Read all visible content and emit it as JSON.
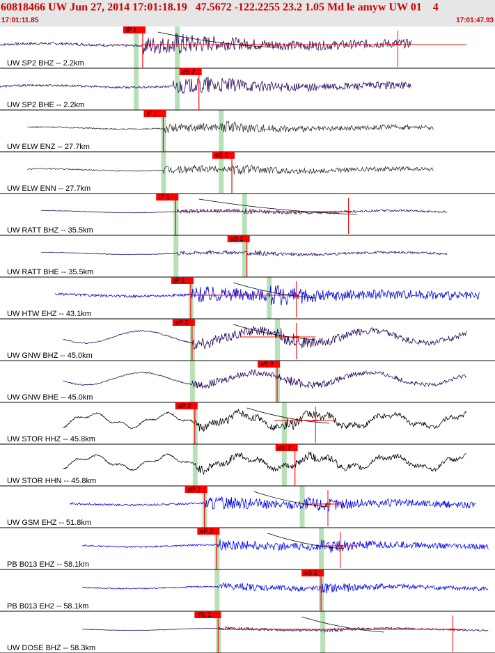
{
  "header": {
    "title": "60818466 UW Jun 27, 2014 17:01:18.19   47.5672 -122.2255 23.2 1.05 Md le amyw UW 01    4",
    "time_start": "17:01:11.85",
    "time_end": "17:01:47.93"
  },
  "colors": {
    "pick": "#ff0000",
    "window": "#b8e0b8",
    "coda": "#000000"
  },
  "chart_data": {
    "type": "seismogram",
    "x_range_seconds": [
      0,
      36.08
    ],
    "traces": [
      {
        "label": "UW SP2 BHZ -- 2.2km",
        "color": "#2a0a5e",
        "start": 0,
        "end": 30.0,
        "amp": 0.3,
        "freq": 30,
        "style": "hf",
        "onset": 10.4,
        "sonset": 12.6,
        "pick": {
          "label": "iP 1",
          "t": 10.4
        },
        "green": [
          9.9,
          12.9
        ],
        "mark": 29.0,
        "coda": [
          11.5,
          20
        ],
        "hline": [
          10.4,
          34.0
        ]
      },
      {
        "label": "UW SP2 BHE -- 2.2km",
        "color": "#2a0a5e",
        "start": 0,
        "end": 30.0,
        "amp": 0.25,
        "freq": 30,
        "style": "hf",
        "onset": 12.6,
        "sonset": 14.5,
        "pick": {
          "label": "eS 2",
          "t": 14.5
        },
        "green": [
          9.9,
          12.9
        ]
      },
      {
        "label": "UW ELW ENZ -- 27.7km",
        "color": "#333333",
        "start": 2.0,
        "end": 31.6,
        "amp": 0.16,
        "freq": 35,
        "style": "hf",
        "onset": 11.9,
        "sonset": 16.1,
        "pick": {
          "label": "iP 1",
          "t": 11.9
        },
        "green": [
          11.9,
          16.1
        ]
      },
      {
        "label": "UW ELW ENN -- 27.7km",
        "color": "#333333",
        "start": 2.0,
        "end": 31.6,
        "amp": 0.14,
        "freq": 35,
        "style": "hf",
        "onset": 11.9,
        "sonset": 16.9,
        "pick": {
          "label": "eS 2",
          "t": 16.9
        },
        "green": [
          11.9,
          16.1
        ]
      },
      {
        "label": "UW RATT BHZ -- 35.5km",
        "color": "#2a0a5e",
        "start": 3.0,
        "end": 32.6,
        "amp": 0.07,
        "freq": 28,
        "style": "hf",
        "onset": 12.8,
        "sonset": 17.8,
        "pick": {
          "label": "iP 1",
          "t": 12.8
        },
        "green": [
          12.8,
          17.8
        ],
        "mark": 25.4,
        "coda": [
          14.5,
          26
        ],
        "hline": [
          12.8,
          25.4
        ]
      },
      {
        "label": "UW RATT BHE -- 35.5km",
        "color": "#2a0a5e",
        "start": 3.0,
        "end": 32.6,
        "amp": 0.07,
        "freq": 28,
        "style": "hf",
        "onset": 12.8,
        "sonset": 18.0,
        "pick": {
          "label": "eS 2",
          "t": 18.0
        },
        "green": [
          12.8,
          17.8
        ]
      },
      {
        "label": "UW HTW EHZ -- 43.1km",
        "color": "#0000dd",
        "start": 4.0,
        "end": 35.0,
        "amp": 0.28,
        "freq": 35,
        "style": "hf",
        "onset": 13.9,
        "sonset": 19.6,
        "pick": {
          "label": "iP 1",
          "t": 13.9
        },
        "green": [
          13.9,
          19.6
        ],
        "mark": 21.6,
        "coda": [
          17.0,
          23
        ],
        "hline": [
          13.9,
          21.6
        ]
      },
      {
        "label": "UW GNW BHZ -- 45.0km",
        "color": "#2a0a5e",
        "start": 4.6,
        "end": 34.0,
        "amp": 0.3,
        "freq": 16,
        "style": "swell",
        "onset": 14.0,
        "sonset": 20.2,
        "pick": {
          "label": "eP 2",
          "t": 14.0
        },
        "green": [
          14.0,
          20.2
        ],
        "mark": 21.6,
        "coda": [
          17.0,
          23
        ],
        "hline": [
          17.5,
          23.0
        ]
      },
      {
        "label": "UW GNW BHE -- 45.0km",
        "color": "#2a0a5e",
        "start": 4.6,
        "end": 34.0,
        "amp": 0.2,
        "freq": 16,
        "style": "swell",
        "onset": 14.0,
        "sonset": 20.2,
        "pick": {
          "label": "eS 2",
          "t": 20.2
        },
        "green": [
          14.0,
          20.2
        ]
      },
      {
        "label": "UW STOR HHZ -- 45.8km",
        "color": "#000000",
        "start": 4.6,
        "end": 34.0,
        "amp": 0.28,
        "freq": 12,
        "style": "wave",
        "onset": 14.2,
        "sonset": 20.7,
        "pick": {
          "label": "eP 2",
          "t": 14.2
        },
        "green": [
          14.2,
          20.7
        ],
        "mark": 23.0,
        "coda": [
          18.0,
          24
        ],
        "hline": [
          20.0,
          24.5
        ]
      },
      {
        "label": "UW STOR HHN -- 45.8km",
        "color": "#000000",
        "start": 4.6,
        "end": 34.0,
        "amp": 0.25,
        "freq": 12,
        "style": "wave",
        "onset": 14.2,
        "sonset": 21.5,
        "pick": {
          "label": "eS 2",
          "t": 21.5
        },
        "green": [
          14.2,
          20.7
        ]
      },
      {
        "label": "UW GSM EHZ -- 51.8km",
        "color": "#0000ee",
        "start": 5.1,
        "end": 34.7,
        "amp": 0.22,
        "freq": 40,
        "style": "hf",
        "onset": 14.9,
        "sonset": 22.0,
        "pick": {
          "label": "eP 2",
          "t": 14.9
        },
        "green": [
          14.9,
          22.0
        ],
        "mark": 23.9,
        "coda": [
          18.5,
          24
        ],
        "hline": [
          22.0,
          25.0
        ]
      },
      {
        "label": "PB B013 EHZ -- 58.1km",
        "color": "#0000ee",
        "start": 6.0,
        "end": 35.6,
        "amp": 0.18,
        "freq": 40,
        "style": "hf",
        "onset": 15.8,
        "sonset": 23.4,
        "pick": {
          "label": "eP 2",
          "t": 15.8
        },
        "green": [
          15.8,
          23.4
        ],
        "mark": 24.8,
        "coda": [
          19.5,
          25
        ],
        "hline": [
          23.4,
          26.0
        ]
      },
      {
        "label": "PB B013 EH2 -- 58.1km",
        "color": "#0000ee",
        "start": 6.0,
        "end": 35.6,
        "amp": 0.14,
        "freq": 40,
        "style": "hf",
        "onset": 15.8,
        "sonset": 23.4,
        "pick": {
          "label": "eS 2",
          "t": 23.4
        },
        "green": [
          15.8,
          23.4
        ]
      },
      {
        "label": "UW DOSE BHZ -- 58.3km",
        "color": "#2a0a5e",
        "start": 6.0,
        "end": 35.6,
        "amp": 0.05,
        "freq": 30,
        "style": "hf",
        "onset": 15.9,
        "sonset": 23.5,
        "pick": {
          "label": "iPc 1",
          "t": 15.9
        },
        "green": [
          15.9,
          23.5
        ],
        "mark": 33.0,
        "coda": [
          22.0,
          28
        ],
        "hline": [
          15.9,
          34.0
        ]
      }
    ]
  }
}
